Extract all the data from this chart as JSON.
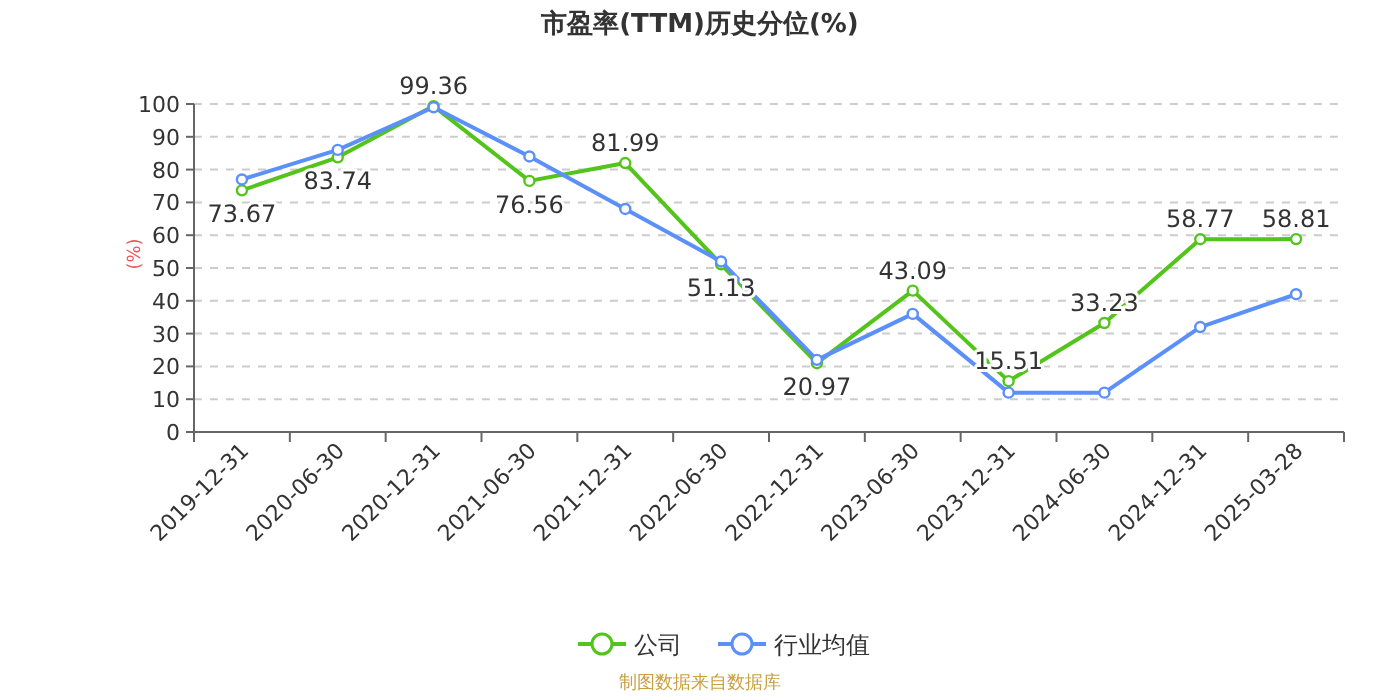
{
  "chart_data": {
    "type": "line",
    "title": "市盈率(TTM)历史分位(%)",
    "ylabel": "(%)",
    "categories": [
      "2019-12-31",
      "2020-06-30",
      "2020-12-31",
      "2021-06-30",
      "2021-12-31",
      "2022-06-30",
      "2022-12-31",
      "2023-06-30",
      "2023-12-31",
      "2024-06-30",
      "2024-12-31",
      "2025-03-28"
    ],
    "series": [
      {
        "name": "公司",
        "color": "#52c41a",
        "values": [
          73.67,
          83.74,
          99.36,
          76.56,
          81.99,
          51.13,
          20.97,
          43.09,
          15.51,
          33.23,
          58.77,
          58.81
        ],
        "data_labels": true
      },
      {
        "name": "行业均值",
        "color": "#5b8ff9",
        "values": [
          77,
          86,
          99,
          84,
          68,
          52,
          22,
          36,
          12,
          12,
          32,
          42
        ]
      }
    ],
    "ylim": [
      0,
      100
    ],
    "yticks": [
      0,
      10,
      20,
      30,
      40,
      50,
      60,
      70,
      80,
      90,
      100
    ],
    "grid": "y",
    "legend": "bottom",
    "marker": "circle",
    "annotations": [
      "制图数据来自数据库"
    ]
  }
}
